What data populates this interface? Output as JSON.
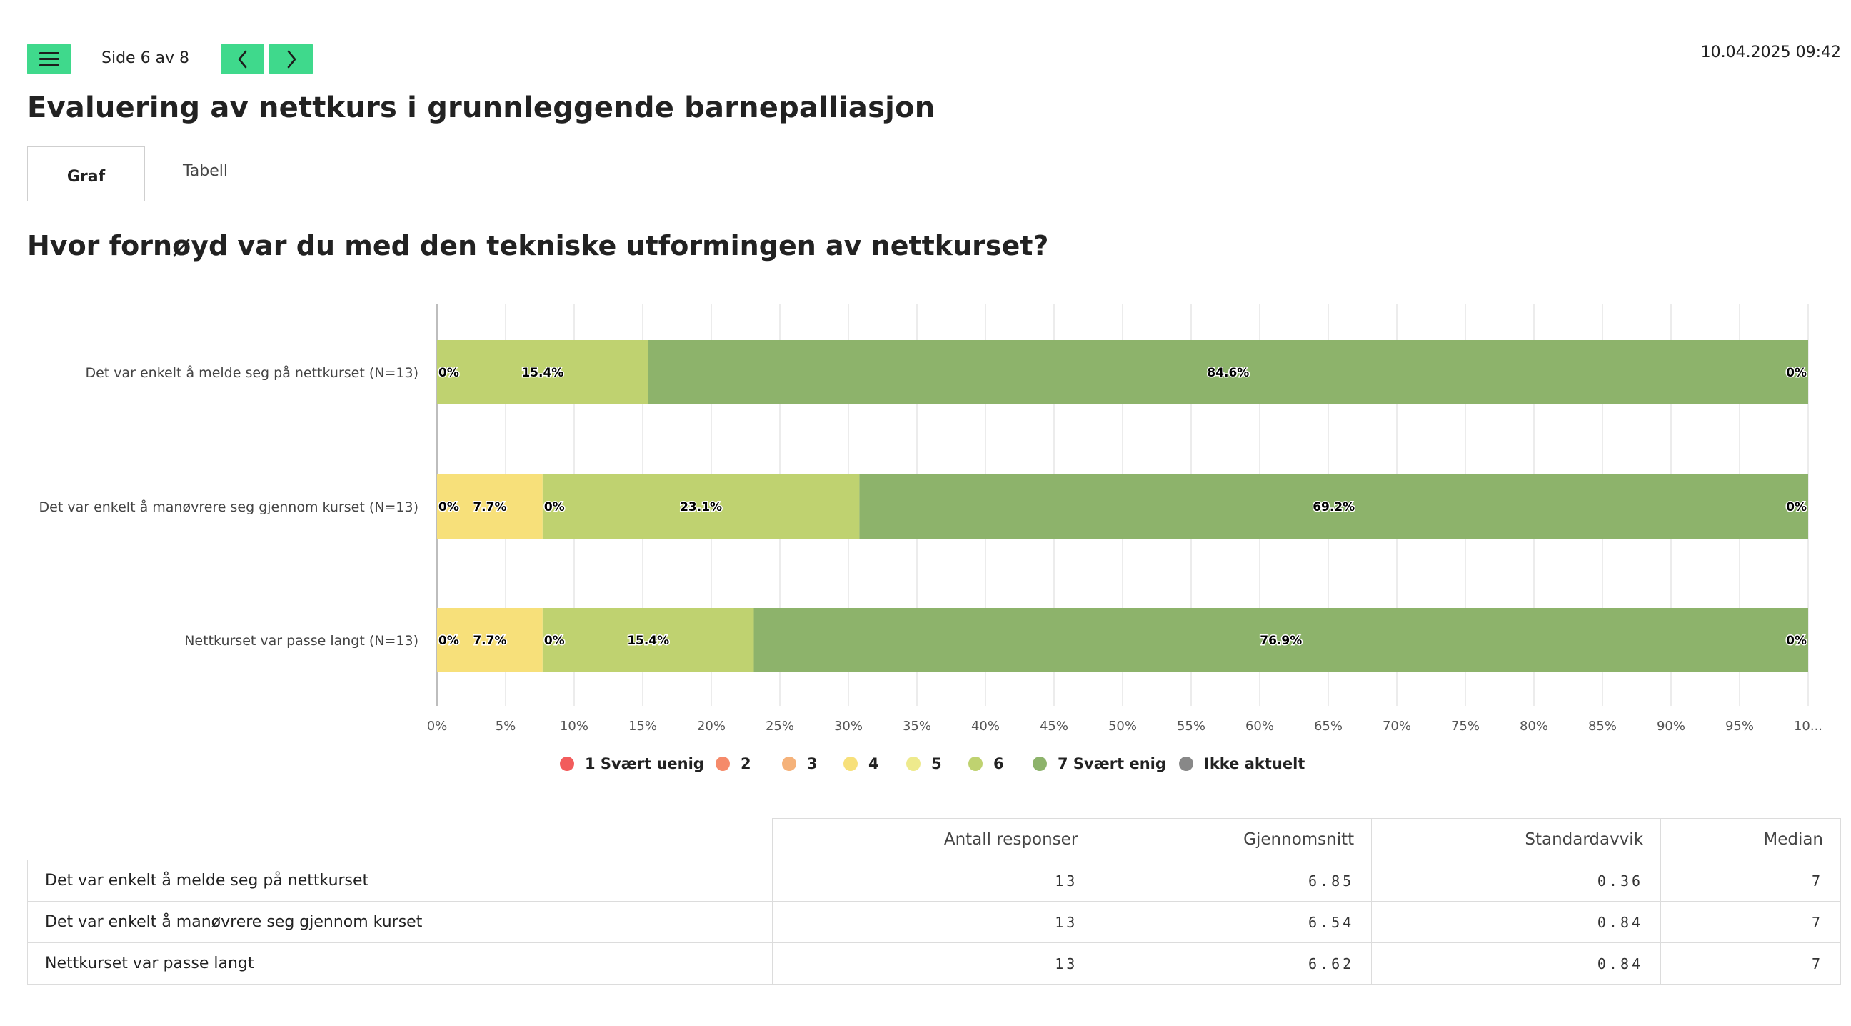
{
  "header": {
    "page_indicator": "Side 6 av 8",
    "timestamp": "10.04.2025 09:42",
    "menu_icon": "hamburger-icon",
    "prev_icon": "chevron-left-icon",
    "next_icon": "chevron-right-icon",
    "accent_color": "#3fd98c"
  },
  "title": "Evaluering av nettkurs i grunnleggende barnepalliasjon",
  "tabs": [
    {
      "label": "Graf",
      "active": true
    },
    {
      "label": "Tabell",
      "active": false
    }
  ],
  "question": "Hvor fornøyd var du med den tekniske utformingen av nettkurset?",
  "chart_data": {
    "type": "bar",
    "orientation": "horizontal",
    "stacked": true,
    "categories": [
      "Det var enkelt å melde seg på nettkurset (N=13)",
      "Det var enkelt å manøvrere seg gjennom kurset (N=13)",
      "Nettkurset var passe langt (N=13)"
    ],
    "x_ticks": [
      "0%",
      "5%",
      "10%",
      "15%",
      "20%",
      "25%",
      "30%",
      "35%",
      "40%",
      "45%",
      "50%",
      "55%",
      "60%",
      "65%",
      "70%",
      "75%",
      "80%",
      "85%",
      "90%",
      "95%",
      "10..."
    ],
    "xlim": [
      0,
      100
    ],
    "grid": true,
    "legend_position": "bottom",
    "series": [
      {
        "name": "1 Svært uenig",
        "color": "#f25c5c",
        "values": [
          0,
          0,
          0
        ]
      },
      {
        "name": "2",
        "color": "#f58a6a",
        "values": [
          0,
          0,
          0
        ]
      },
      {
        "name": "3",
        "color": "#f5b27a",
        "values": [
          0,
          0,
          0
        ]
      },
      {
        "name": "4",
        "color": "#f7e07a",
        "values": [
          0,
          7.7,
          7.7
        ]
      },
      {
        "name": "5",
        "color": "#eeea8c",
        "values": [
          0,
          0,
          0
        ]
      },
      {
        "name": "6",
        "color": "#bfd270",
        "values": [
          15.4,
          23.1,
          15.4
        ]
      },
      {
        "name": "7 Svært enig",
        "color": "#8db36b",
        "values": [
          84.6,
          69.2,
          76.9
        ]
      },
      {
        "name": "Ikke aktuelt",
        "color": "#888888",
        "values": [
          0,
          0,
          0
        ]
      }
    ],
    "segment_labels": [
      [
        {
          "text": "0%",
          "value_at": 0,
          "kind": "start"
        },
        {
          "text": "15.4%",
          "series": 5
        },
        {
          "text": "84.6%",
          "series": 6
        },
        {
          "text": "0%",
          "value_at": 100,
          "kind": "end"
        }
      ],
      [
        {
          "text": "0%",
          "value_at": 0,
          "kind": "start"
        },
        {
          "text": "7.7%",
          "series": 3
        },
        {
          "text": "0%",
          "value_at": 7.7,
          "kind": "start"
        },
        {
          "text": "23.1%",
          "series": 5
        },
        {
          "text": "69.2%",
          "series": 6
        },
        {
          "text": "0%",
          "value_at": 100,
          "kind": "end"
        }
      ],
      [
        {
          "text": "0%",
          "value_at": 0,
          "kind": "start"
        },
        {
          "text": "7.7%",
          "series": 3
        },
        {
          "text": "0%",
          "value_at": 7.7,
          "kind": "start"
        },
        {
          "text": "15.4%",
          "series": 5
        },
        {
          "text": "76.9%",
          "series": 6
        },
        {
          "text": "0%",
          "value_at": 100,
          "kind": "end"
        }
      ]
    ]
  },
  "stats_table": {
    "headers": [
      "",
      "Antall responser",
      "Gjennomsnitt",
      "Standardavvik",
      "Median"
    ],
    "rows": [
      {
        "label": "Det var enkelt å melde seg på nettkurset",
        "antall": "13",
        "snitt": "6.85",
        "std": "0.36",
        "median": "7"
      },
      {
        "label": "Det var enkelt å manøvrere seg gjennom kurset",
        "antall": "13",
        "snitt": "6.54",
        "std": "0.84",
        "median": "7"
      },
      {
        "label": "Nettkurset var passe langt",
        "antall": "13",
        "snitt": "6.62",
        "std": "0.84",
        "median": "7"
      }
    ]
  }
}
